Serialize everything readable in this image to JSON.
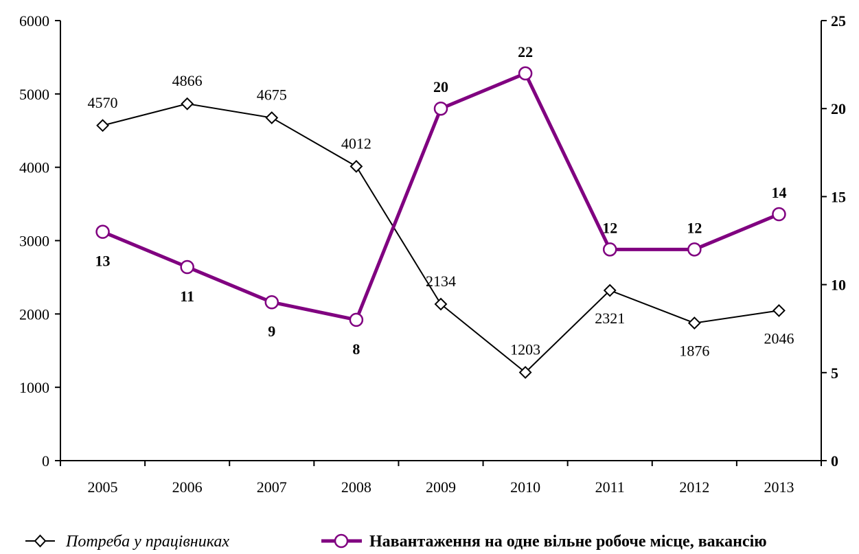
{
  "chart_data": {
    "type": "line",
    "categories": [
      "2005",
      "2006",
      "2007",
      "2008",
      "2009",
      "2010",
      "2011",
      "2012",
      "2013"
    ],
    "y_left": {
      "ylim": [
        0,
        6000
      ],
      "ticks": [
        0,
        1000,
        2000,
        3000,
        4000,
        5000,
        6000
      ]
    },
    "y_right": {
      "ylim": [
        0,
        25
      ],
      "ticks": [
        0,
        5,
        10,
        15,
        20,
        25
      ]
    },
    "series": [
      {
        "name": "Потреба у працівниках",
        "axis": "left",
        "marker": "diamond",
        "color": "#000000",
        "values": [
          4570,
          4866,
          4675,
          4012,
          2134,
          1203,
          2321,
          1876,
          2046
        ]
      },
      {
        "name": "Навантаження на одне вільне робоче місце, вакансію",
        "axis": "right",
        "marker": "circle",
        "color": "#800080",
        "values": [
          13,
          11,
          9,
          8,
          20,
          22,
          12,
          12,
          14
        ]
      }
    ],
    "grid": false,
    "legend_position": "bottom"
  }
}
